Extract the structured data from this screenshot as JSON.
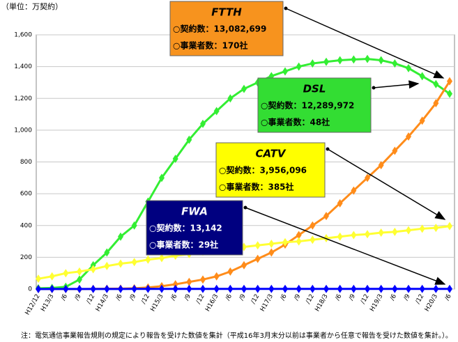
{
  "chart_data": {
    "type": "line",
    "unit_label": "（単位：万契約）",
    "note": "注：電気通信事業報告規則の規定により報告を受けた数値を集計（平成16年3月末分以前は事業者から任意で報告を受けた数値を集計。）。",
    "categories": [
      "H12/12",
      "H13/3",
      "/6",
      "/9",
      "/12",
      "H14/3",
      "/6",
      "/9",
      "/12",
      "H15/3",
      "/6",
      "/9",
      "/12",
      "H16/3",
      "/6",
      "/9",
      "/12",
      "H17/3",
      "/6",
      "/9",
      "/12",
      "H18/3",
      "/6",
      "/9",
      "/12",
      "H19/3",
      "/6",
      "/9",
      "/12",
      "H20/3",
      "/6"
    ],
    "ylim": [
      0,
      1600
    ],
    "yticks": [
      0,
      200,
      400,
      600,
      800,
      {
        "value": 1000,
        "label": "1,000"
      },
      {
        "value": 1200,
        "label": "1,200"
      },
      {
        "value": 1400,
        "label": "1,400"
      },
      {
        "value": 1600,
        "label": "1,600"
      }
    ],
    "grid": true,
    "series": [
      {
        "name": "DSL",
        "color": "#33ee33",
        "values": [
          5,
          7,
          14,
          60,
          150,
          230,
          330,
          400,
          550,
          700,
          820,
          940,
          1040,
          1120,
          1200,
          1260,
          1300,
          1340,
          1370,
          1400,
          1420,
          1430,
          1440,
          1445,
          1448,
          1440,
          1420,
          1390,
          1340,
          1290,
          1229
        ]
      },
      {
        "name": "FTTH",
        "color": "#ff8c1a",
        "values": [
          0,
          0,
          0,
          0,
          1,
          2,
          3,
          5,
          10,
          18,
          30,
          45,
          60,
          80,
          110,
          150,
          190,
          230,
          280,
          340,
          400,
          460,
          540,
          620,
          700,
          780,
          870,
          960,
          1060,
          1170,
          1308
        ]
      },
      {
        "name": "CATV",
        "color": "#ffff33",
        "values": [
          65,
          80,
          100,
          110,
          125,
          145,
          160,
          170,
          185,
          195,
          210,
          220,
          235,
          245,
          255,
          265,
          275,
          285,
          295,
          300,
          310,
          320,
          330,
          340,
          345,
          355,
          360,
          370,
          380,
          385,
          396
        ]
      },
      {
        "name": "FWA",
        "color": "#0000ff",
        "values": [
          0.2,
          0.3,
          0.4,
          0.5,
          0.6,
          0.7,
          0.8,
          0.9,
          1,
          1.1,
          1.2,
          1.3,
          1.3,
          1.3,
          1.3,
          1.3,
          1.3,
          1.3,
          1.3,
          1.3,
          1.3,
          1.3,
          1.3,
          1.3,
          1.3,
          1.3,
          1.3,
          1.3,
          1.3,
          1.3,
          1.3
        ]
      }
    ],
    "annotations": [
      {
        "title": "FTTH",
        "lines": [
          "○契約数：13,082,699",
          "○事業者数：170社"
        ]
      },
      {
        "title": "DSL",
        "lines": [
          "○契約数：12,289,972",
          "○事業者数：48社"
        ]
      },
      {
        "title": "CATV",
        "lines": [
          "○契約数：3,956,096",
          "○事業者数：385社"
        ]
      },
      {
        "title": "FWA",
        "lines": [
          "○契約数：13,142",
          "○事業者数：29社"
        ]
      }
    ]
  }
}
